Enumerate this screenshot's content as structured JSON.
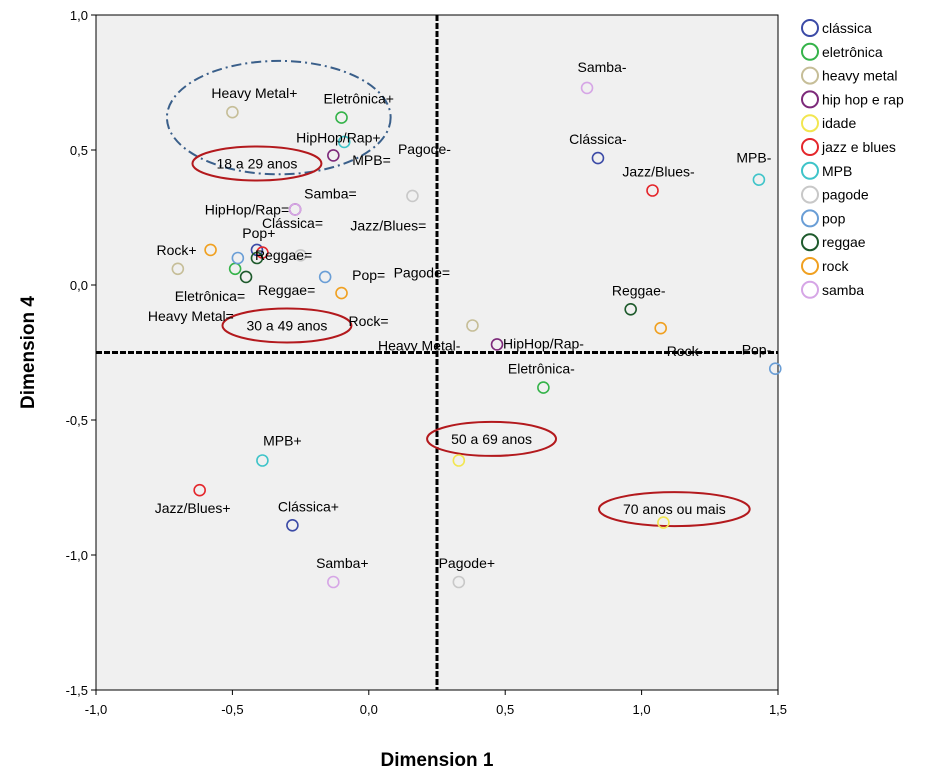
{
  "chart_data": {
    "type": "scatter",
    "xlabel": "Dimension 1",
    "ylabel": "Dimension 4",
    "xlim": [
      -1.0,
      1.5
    ],
    "ylim": [
      -1.5,
      1.0
    ],
    "xticks": [
      -1.0,
      -0.5,
      0.0,
      0.5,
      1.0,
      1.5
    ],
    "yticks": [
      -1.5,
      -1.0,
      -0.5,
      0.0,
      0.5,
      1.0
    ],
    "xtick_labels": [
      "-1,0",
      "-0,5",
      "0,0",
      "0,5",
      "1,0",
      "1,5"
    ],
    "ytick_labels": [
      "-1,5",
      "-1,0",
      "-0,5",
      "0,0",
      "0,5",
      "1,0"
    ],
    "reference_lines": {
      "x": 0.25,
      "y": -0.25
    },
    "legend_position": "right",
    "series": [
      {
        "name": "clássica",
        "color": "#3b4aa6",
        "points": [
          {
            "x": 0.84,
            "y": 0.47,
            "label": "Clássica-",
            "anchor": "middle",
            "dx": 0,
            "dy": -14
          },
          {
            "x": -0.28,
            "y": -0.89,
            "label": "Clássica+",
            "anchor": "middle",
            "dx": 16,
            "dy": -14
          },
          {
            "x": -0.41,
            "y": 0.13,
            "label": "Clássica=",
            "anchor": "start",
            "dx": 5,
            "dy": -22
          }
        ]
      },
      {
        "name": "eletrônica",
        "color": "#35b34a",
        "points": [
          {
            "x": -0.1,
            "y": 0.62,
            "label": "Eletrônica+",
            "anchor": "start",
            "dx": -18,
            "dy": -14
          },
          {
            "x": 0.64,
            "y": -0.38,
            "label": "Eletrônica-",
            "anchor": "middle",
            "dx": -2,
            "dy": -14
          },
          {
            "x": -0.49,
            "y": 0.06,
            "label": "Eletrônica=",
            "anchor": "end",
            "dx": 10,
            "dy": 32
          }
        ]
      },
      {
        "name": "heavy metal",
        "color": "#c6be98",
        "points": [
          {
            "x": -0.5,
            "y": 0.64,
            "label": "Heavy Metal+",
            "anchor": "middle",
            "dx": 22,
            "dy": -14
          },
          {
            "x": 0.38,
            "y": -0.15,
            "label": "Heavy Metal-",
            "anchor": "end",
            "dx": -12,
            "dy": 25
          },
          {
            "x": -0.7,
            "y": 0.06,
            "label": "Heavy Metal=",
            "anchor": "end",
            "dx": 56,
            "dy": 52
          }
        ]
      },
      {
        "name": "hip hop e rap",
        "color": "#7d2a7a",
        "points": [
          {
            "x": -0.13,
            "y": 0.48,
            "label": "HipHop/Rap+",
            "anchor": "middle",
            "dx": 5,
            "dy": -13
          },
          {
            "x": 0.47,
            "y": -0.22,
            "label": "HipHop/Rap-",
            "anchor": "start",
            "dx": 6,
            "dy": 4
          },
          {
            "x": -0.27,
            "y": 0.28,
            "label": "HipHop/Rap=",
            "anchor": "end",
            "dx": -6,
            "dy": 5
          }
        ]
      },
      {
        "name": "idade",
        "color": "#f2e650",
        "points": [
          {
            "x": 0.33,
            "y": -0.65,
            "label": "",
            "anchor": "middle",
            "dx": 0,
            "dy": 0
          },
          {
            "x": 1.08,
            "y": -0.88,
            "label": "",
            "anchor": "middle",
            "dx": 0,
            "dy": 0
          }
        ]
      },
      {
        "name": "jazz e blues",
        "color": "#e4262b",
        "points": [
          {
            "x": -0.62,
            "y": -0.76,
            "label": "Jazz/Blues+",
            "anchor": "middle",
            "dx": -7,
            "dy": 23
          },
          {
            "x": 1.04,
            "y": 0.35,
            "label": "Jazz/Blues-",
            "anchor": "middle",
            "dx": 6,
            "dy": -14
          },
          {
            "x": -0.39,
            "y": 0.12,
            "label": "Jazz/Blues=",
            "anchor": "start",
            "dx": 88,
            "dy": -22
          }
        ]
      },
      {
        "name": "MPB",
        "color": "#3fc4c9",
        "points": [
          {
            "x": -0.39,
            "y": -0.65,
            "label": "MPB+",
            "anchor": "middle",
            "dx": 20,
            "dy": -15
          },
          {
            "x": 1.43,
            "y": 0.39,
            "label": "MPB-",
            "anchor": "middle",
            "dx": -5,
            "dy": -17
          },
          {
            "x": -0.09,
            "y": 0.53,
            "label": "MPB=",
            "anchor": "start",
            "dx": 8,
            "dy": 23
          }
        ]
      },
      {
        "name": "pagode",
        "color": "#c8c8c8",
        "points": [
          {
            "x": 0.33,
            "y": -1.1,
            "label": "Pagode+",
            "anchor": "middle",
            "dx": 8,
            "dy": -14
          },
          {
            "x": 0.16,
            "y": 0.33,
            "label": "Pagode-",
            "anchor": "middle",
            "dx": 12,
            "dy": -42
          },
          {
            "x": -0.25,
            "y": 0.11,
            "label": "Pagode=",
            "anchor": "start",
            "dx": 93,
            "dy": 22
          }
        ]
      },
      {
        "name": "pop",
        "color": "#6a9ed6",
        "points": [
          {
            "x": -0.48,
            "y": 0.1,
            "label": "Pop+",
            "anchor": "middle",
            "dx": 21,
            "dy": -20
          },
          {
            "x": 1.49,
            "y": -0.31,
            "label": "Pop-",
            "anchor": "end",
            "dx": -4,
            "dy": -14
          },
          {
            "x": -0.16,
            "y": 0.03,
            "label": "Pop=",
            "anchor": "start",
            "dx": 27,
            "dy": 3
          }
        ]
      },
      {
        "name": "reggae",
        "color": "#1e5a2c",
        "points": [
          {
            "x": -0.45,
            "y": 0.03,
            "label": "Reggae=",
            "anchor": "start",
            "dx": 12,
            "dy": 18
          },
          {
            "x": 0.96,
            "y": -0.09,
            "label": "Reggae-",
            "anchor": "middle",
            "dx": 8,
            "dy": -14
          },
          {
            "x": -0.41,
            "y": 0.1,
            "label": "Reggae=",
            "anchor": "start",
            "dx": -2,
            "dy": 2
          }
        ]
      },
      {
        "name": "rock",
        "color": "#f0a020",
        "points": [
          {
            "x": -0.58,
            "y": 0.13,
            "label": "Rock+",
            "anchor": "end",
            "dx": -14,
            "dy": 5
          },
          {
            "x": 1.07,
            "y": -0.16,
            "label": "Rock-",
            "anchor": "start",
            "dx": 6,
            "dy": 28
          },
          {
            "x": -0.1,
            "y": -0.03,
            "label": "Rock=",
            "anchor": "start",
            "dx": 7,
            "dy": 33
          }
        ]
      },
      {
        "name": "samba",
        "color": "#d6a6e6",
        "points": [
          {
            "x": -0.13,
            "y": -1.1,
            "label": "Samba+",
            "anchor": "middle",
            "dx": 9,
            "dy": -14
          },
          {
            "x": 0.8,
            "y": 0.73,
            "label": "Samba-",
            "anchor": "middle",
            "dx": 15,
            "dy": -16
          },
          {
            "x": -0.27,
            "y": 0.28,
            "label": "Samba=",
            "anchor": "start",
            "dx": 9,
            "dy": -11
          }
        ]
      }
    ],
    "annotations": [
      {
        "text": "18 a 29 anos",
        "x": -0.41,
        "y": 0.45,
        "shape": "ellipse"
      },
      {
        "text": "30 a 49 anos",
        "x": -0.3,
        "y": -0.15,
        "shape": "ellipse"
      },
      {
        "text": "50 a 69 anos",
        "x": 0.45,
        "y": -0.57,
        "shape": "ellipse"
      },
      {
        "text": "70 anos ou mais",
        "x": 1.12,
        "y": -0.83,
        "shape": "ellipse"
      }
    ],
    "highlight_ellipse": {
      "cx": -0.33,
      "cy": 0.62,
      "rx_units": 0.41,
      "ry_units": 0.21,
      "color": "#3a5f8a",
      "style": "dash-dot"
    }
  }
}
